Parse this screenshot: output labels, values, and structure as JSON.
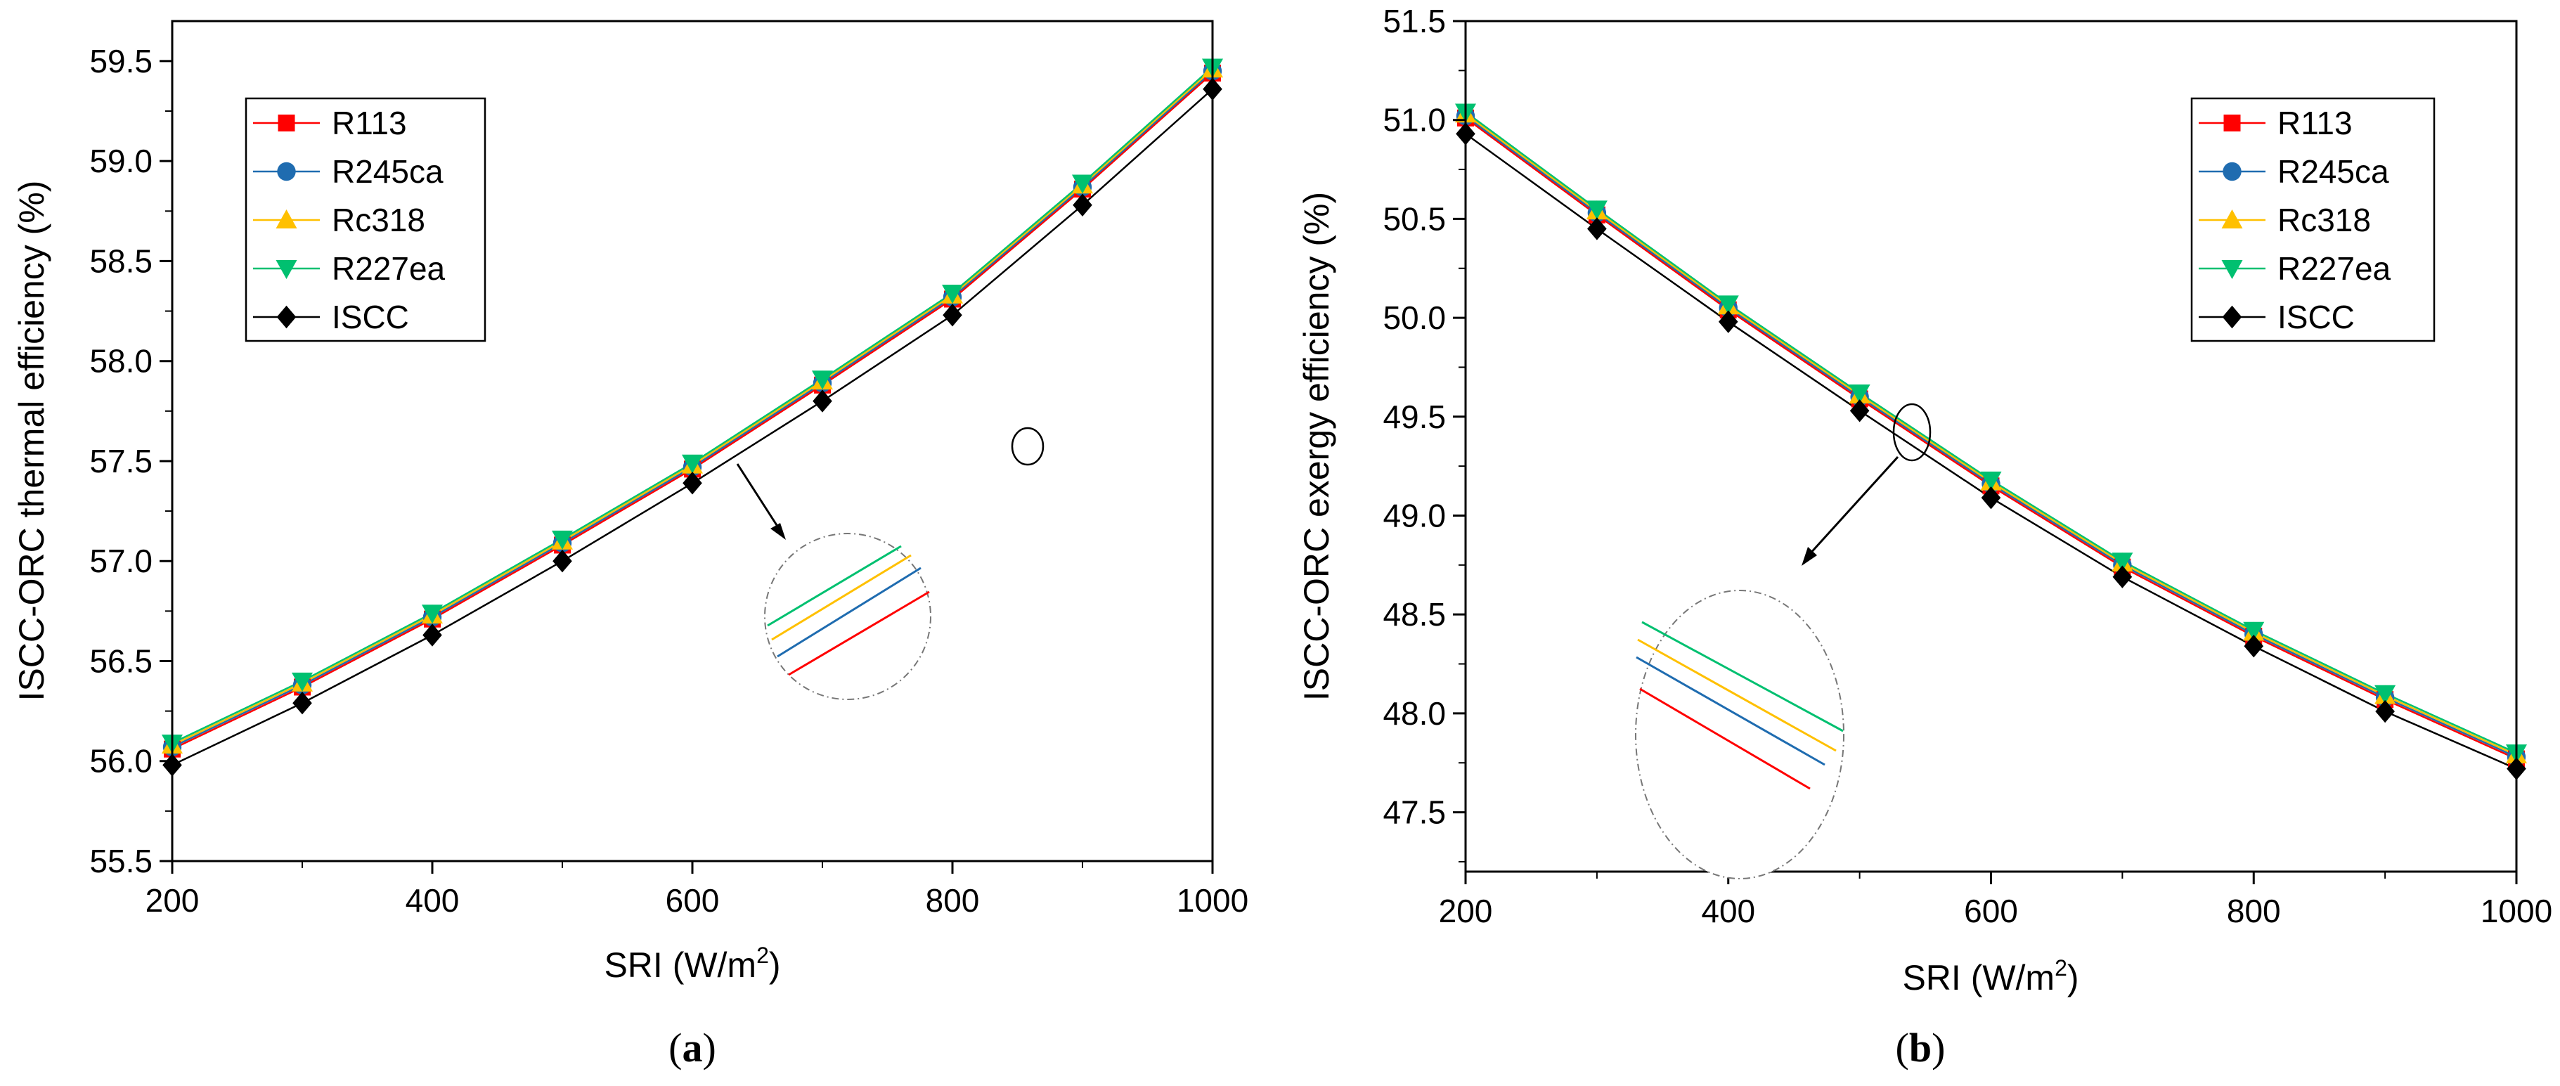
{
  "figure": {
    "panel_a_label_open": "(",
    "panel_a_label_letter": "a",
    "panel_a_label_close": ")",
    "panel_b_label_open": "(",
    "panel_b_label_letter": "b",
    "panel_b_label_close": ")"
  },
  "chart_data": [
    {
      "type": "line",
      "panel": "a",
      "title": "",
      "xlabel_main": "SRI (W/m",
      "xlabel_sup": "2",
      "xlabel_end": ")",
      "ylabel": "ISCC-ORC thermal efficiency (%)",
      "xlim": [
        200,
        1000
      ],
      "ylim": [
        55.5,
        59.7
      ],
      "xticks": [
        200,
        400,
        600,
        800,
        1000
      ],
      "xtick_labels": [
        "200",
        "400",
        "600",
        "800",
        "1000"
      ],
      "yticks": [
        55.5,
        56.0,
        56.5,
        57.0,
        57.5,
        58.0,
        58.5,
        59.0,
        59.5
      ],
      "ytick_labels": [
        "55.5",
        "56.0",
        "56.5",
        "57.0",
        "57.5",
        "58.0",
        "58.5",
        "59.0",
        "59.5"
      ],
      "legend_position": "top-left",
      "x": [
        200,
        300,
        400,
        500,
        600,
        700,
        800,
        900,
        1000
      ],
      "series": [
        {
          "name": "R113",
          "color": "#ff0000",
          "marker": "square",
          "values": [
            56.06,
            56.37,
            56.71,
            57.08,
            57.46,
            57.88,
            58.31,
            58.86,
            59.44
          ]
        },
        {
          "name": "R245ca",
          "color": "#1f6cb0",
          "marker": "circle",
          "values": [
            56.07,
            56.38,
            56.72,
            57.09,
            57.47,
            57.89,
            58.32,
            58.87,
            59.45
          ]
        },
        {
          "name": "Rc318",
          "color": "#ffc000",
          "marker": "triangle-up",
          "values": [
            56.08,
            56.39,
            56.73,
            57.1,
            57.48,
            57.9,
            58.33,
            58.88,
            59.46
          ]
        },
        {
          "name": "R227ea",
          "color": "#00c070",
          "marker": "triangle-down",
          "values": [
            56.09,
            56.4,
            56.74,
            57.11,
            57.49,
            57.91,
            58.34,
            58.89,
            59.47
          ]
        },
        {
          "name": "ISCC",
          "color": "#000000",
          "marker": "diamond",
          "values": [
            55.98,
            56.29,
            56.63,
            57.0,
            57.39,
            57.8,
            58.23,
            58.78,
            59.36
          ]
        }
      ],
      "annotation": "zoom-in circle showing separated parallel lines"
    },
    {
      "type": "line",
      "panel": "b",
      "title": "",
      "xlabel_main": "SRI (W/m",
      "xlabel_sup": "2",
      "xlabel_end": ")",
      "ylabel": "ISCC-ORC exergy efficiency (%)",
      "xlim": [
        200,
        1000
      ],
      "ylim": [
        47.2,
        51.5
      ],
      "xticks": [
        200,
        400,
        600,
        800,
        1000
      ],
      "xtick_labels": [
        "200",
        "400",
        "600",
        "800",
        "1000"
      ],
      "yticks": [
        47.5,
        48.0,
        48.5,
        49.0,
        49.5,
        50.0,
        50.5,
        51.0,
        51.5
      ],
      "ytick_labels": [
        "47.5",
        "48.0",
        "48.5",
        "49.0",
        "49.5",
        "50.0",
        "50.5",
        "51.0",
        "51.5"
      ],
      "legend_position": "top-right",
      "x": [
        200,
        300,
        400,
        500,
        600,
        700,
        800,
        900,
        1000
      ],
      "series": [
        {
          "name": "R113",
          "color": "#ff0000",
          "marker": "square",
          "values": [
            51.01,
            50.52,
            50.04,
            49.59,
            49.15,
            48.74,
            48.39,
            48.07,
            47.77
          ]
        },
        {
          "name": "R245ca",
          "color": "#1f6cb0",
          "marker": "circle",
          "values": [
            51.02,
            50.53,
            50.05,
            49.6,
            49.16,
            48.75,
            48.4,
            48.08,
            47.78
          ]
        },
        {
          "name": "Rc318",
          "color": "#ffc000",
          "marker": "triangle-up",
          "values": [
            51.03,
            50.54,
            50.06,
            49.61,
            49.17,
            48.76,
            48.41,
            48.09,
            47.79
          ]
        },
        {
          "name": "R227ea",
          "color": "#00c070",
          "marker": "triangle-down",
          "values": [
            51.04,
            50.55,
            50.07,
            49.62,
            49.18,
            48.77,
            48.42,
            48.1,
            47.8
          ]
        },
        {
          "name": "ISCC",
          "color": "#000000",
          "marker": "diamond",
          "values": [
            50.93,
            50.45,
            49.98,
            49.53,
            49.09,
            48.69,
            48.34,
            48.01,
            47.72
          ]
        }
      ],
      "annotation": "zoom-in circle showing separated parallel lines"
    }
  ]
}
